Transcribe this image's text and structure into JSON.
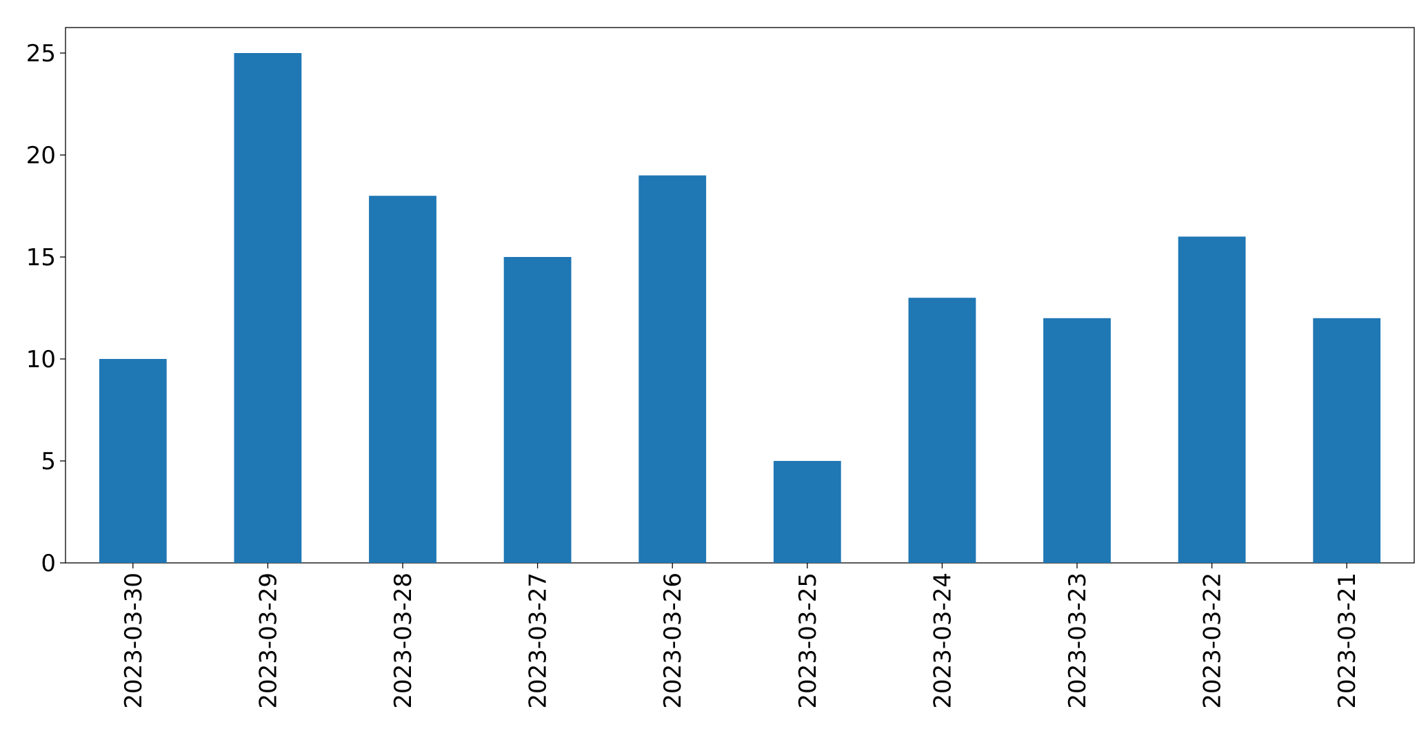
{
  "chart_data": {
    "type": "bar",
    "categories": [
      "2023-03-30",
      "2023-03-29",
      "2023-03-28",
      "2023-03-27",
      "2023-03-26",
      "2023-03-25",
      "2023-03-24",
      "2023-03-23",
      "2023-03-22",
      "2023-03-21"
    ],
    "values": [
      10,
      25,
      18,
      15,
      19,
      5,
      13,
      12,
      16,
      12
    ],
    "color": "#1f77b4",
    "ylim": [
      0,
      26.25
    ],
    "yticks": [
      0,
      5,
      10,
      15,
      20,
      25
    ],
    "grid": false
  }
}
